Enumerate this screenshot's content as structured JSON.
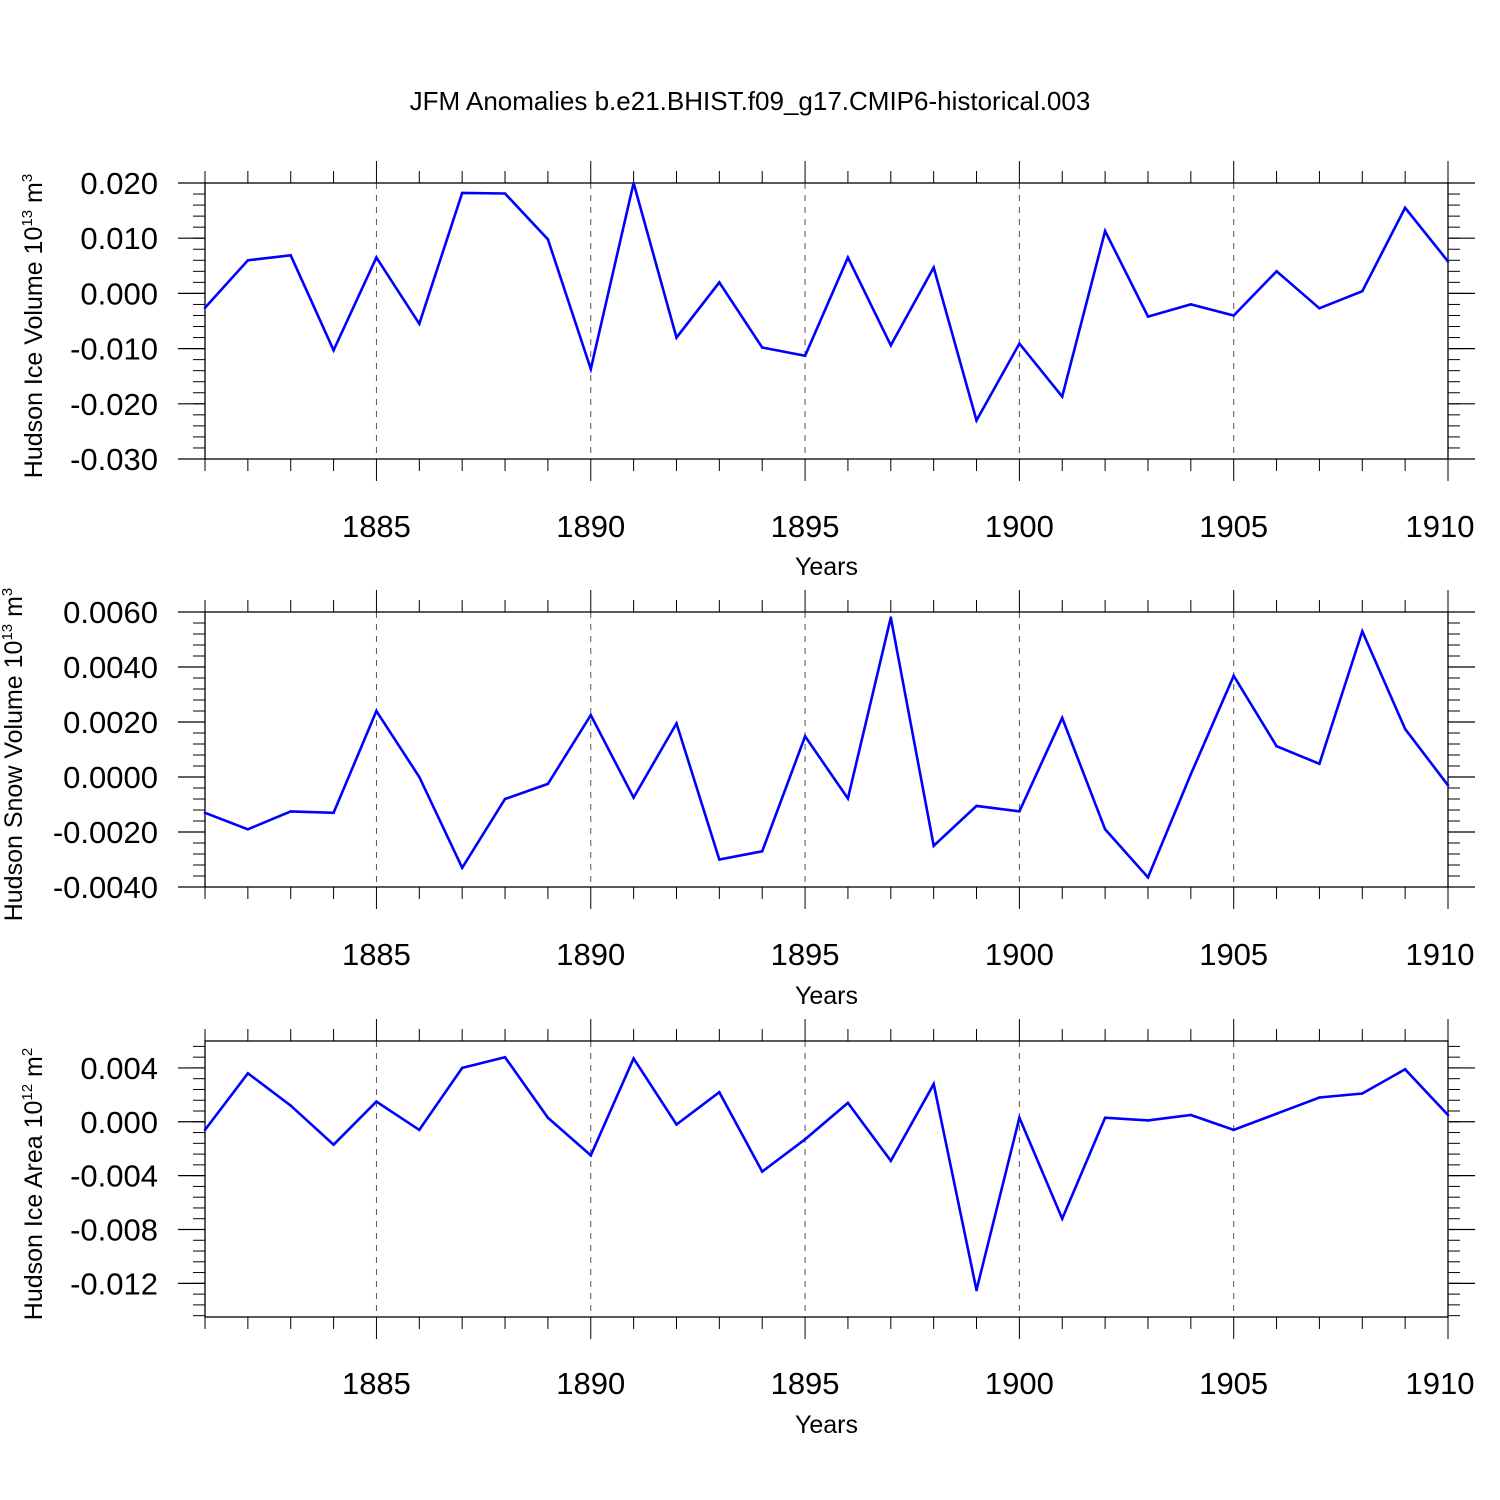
{
  "chart_data": [
    {
      "type": "line",
      "title": "JFM Anomalies b.e21.BHIST.f09_g17.CMIP6-historical.003",
      "ylabel": {
        "main": "Hudson Ice Volume 10",
        "exponent": "13",
        "unit": "m",
        "unit_exponent": "3"
      },
      "xlabel": "Years",
      "xlim": [
        1881,
        1910
      ],
      "ylim": [
        -0.03,
        0.02
      ],
      "y_ticks": [
        -0.03,
        -0.02,
        -0.01,
        0.0,
        0.01,
        0.02
      ],
      "y_tick_labels": [
        "-0.030",
        "-0.020",
        "-0.010",
        "0.000",
        "0.010",
        "0.020"
      ],
      "y_minor_step": 0.002,
      "x_ticks": [
        1885,
        1890,
        1895,
        1900,
        1905,
        1910
      ],
      "x_tick_labels": [
        "1885",
        "1890",
        "1895",
        "1900",
        "1905",
        "1910"
      ],
      "grid": "dashed vertical at labeled years",
      "series": [
        {
          "name": "Hudson Ice Volume",
          "color": "#0000ff",
          "x": [
            1881,
            1882,
            1883,
            1884,
            1885,
            1886,
            1887,
            1888,
            1889,
            1890,
            1891,
            1892,
            1893,
            1894,
            1895,
            1896,
            1897,
            1898,
            1899,
            1900,
            1901,
            1902,
            1903,
            1904,
            1905,
            1906,
            1907,
            1908,
            1909,
            1910
          ],
          "values": [
            -0.0026,
            0.006,
            0.0069,
            -0.0103,
            0.0065,
            -0.0055,
            0.0182,
            0.0181,
            0.0098,
            -0.0137,
            0.02,
            -0.008,
            0.002,
            -0.0098,
            -0.0113,
            0.0065,
            -0.0094,
            0.0047,
            -0.023,
            -0.0091,
            -0.0187,
            0.0113,
            -0.0042,
            -0.002,
            -0.004,
            0.004,
            -0.0027,
            0.0004,
            0.0155,
            0.0058
          ]
        }
      ]
    },
    {
      "type": "line",
      "ylabel": {
        "main": "Hudson Snow Volume 10",
        "exponent": "13",
        "unit": "m",
        "unit_exponent": "3"
      },
      "xlabel": "Years",
      "xlim": [
        1881,
        1910
      ],
      "ylim": [
        -0.004,
        0.006
      ],
      "y_ticks": [
        -0.004,
        -0.002,
        0.0,
        0.002,
        0.004,
        0.006
      ],
      "y_tick_labels": [
        "-0.0040",
        "-0.0020",
        "0.0000",
        "0.0020",
        "0.0040",
        "0.0060"
      ],
      "y_minor_step": 0.0004,
      "x_ticks": [
        1885,
        1890,
        1895,
        1900,
        1905,
        1910
      ],
      "x_tick_labels": [
        "1885",
        "1890",
        "1895",
        "1900",
        "1905",
        "1910"
      ],
      "grid": "dashed vertical at labeled years",
      "series": [
        {
          "name": "Hudson Snow Volume",
          "color": "#0000ff",
          "x": [
            1881,
            1882,
            1883,
            1884,
            1885,
            1886,
            1887,
            1888,
            1889,
            1890,
            1891,
            1892,
            1893,
            1894,
            1895,
            1896,
            1897,
            1898,
            1899,
            1900,
            1901,
            1902,
            1903,
            1904,
            1905,
            1906,
            1907,
            1908,
            1909,
            1910
          ],
          "values": [
            -0.0013,
            -0.0019,
            -0.00125,
            -0.0013,
            0.0024,
            0.0,
            -0.0033,
            -0.0008,
            -0.00025,
            0.00225,
            -0.00075,
            0.00195,
            -0.003,
            -0.0027,
            0.00148,
            -0.00078,
            0.0058,
            -0.0025,
            -0.00105,
            -0.00125,
            0.00215,
            -0.0019,
            -0.00365,
            0.0001,
            0.00368,
            0.00112,
            0.00048,
            0.0053,
            0.00175,
            -0.0003
          ]
        }
      ]
    },
    {
      "type": "line",
      "ylabel": {
        "main": "Hudson Ice Area 10",
        "exponent": "12",
        "unit": "m",
        "unit_exponent": "2"
      },
      "xlabel": "Years",
      "xlim": [
        1881,
        1910
      ],
      "ylim": [
        -0.0145,
        0.006
      ],
      "y_ticks": [
        -0.012,
        -0.008,
        -0.004,
        0.0,
        0.004
      ],
      "y_tick_labels": [
        "-0.012",
        "-0.008",
        "-0.004",
        "0.000",
        "0.004"
      ],
      "y_minor_step": 0.0008,
      "x_ticks": [
        1885,
        1890,
        1895,
        1900,
        1905,
        1910
      ],
      "x_tick_labels": [
        "1885",
        "1890",
        "1895",
        "1900",
        "1905",
        "1910"
      ],
      "grid": "dashed vertical at labeled years",
      "series": [
        {
          "name": "Hudson Ice Area",
          "color": "#0000ff",
          "x": [
            1881,
            1882,
            1883,
            1884,
            1885,
            1886,
            1887,
            1888,
            1889,
            1890,
            1891,
            1892,
            1893,
            1894,
            1895,
            1896,
            1897,
            1898,
            1899,
            1900,
            1901,
            1902,
            1903,
            1904,
            1905,
            1906,
            1907,
            1908,
            1909,
            1910
          ],
          "values": [
            -0.0006,
            0.0036,
            0.0012,
            -0.0017,
            0.0015,
            -0.0006,
            0.004,
            0.0048,
            0.0003,
            -0.0025,
            0.0047,
            -0.0002,
            0.0022,
            -0.0037,
            -0.0013,
            0.0014,
            -0.0029,
            0.0028,
            -0.0125,
            0.0003,
            -0.0072,
            0.0003,
            0.0001,
            0.0005,
            -0.0006,
            0.0006,
            0.0018,
            0.0021,
            0.0039,
            0.0005
          ]
        }
      ]
    }
  ]
}
